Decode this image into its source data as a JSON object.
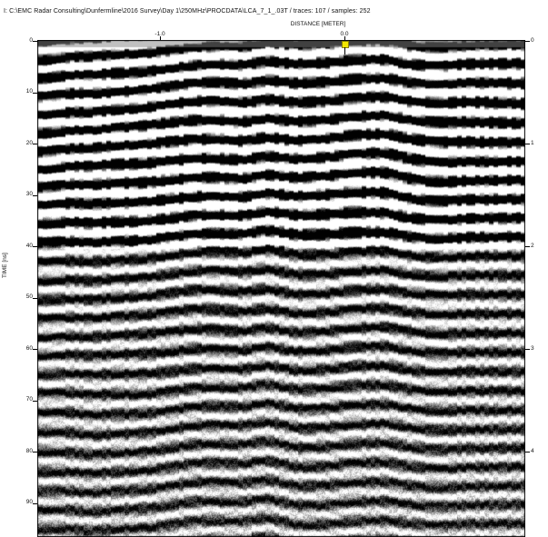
{
  "window": {
    "title": "I: C:\\EMC Radar Consulting\\Dunfermline\\2016 Survey\\Day 1\\250MHz\\PROCDATA\\LCA_7_1_.03T / traces: 107 / samples: 252"
  },
  "radargram": {
    "x_axis_label": "DISTANCE [METER]",
    "x_ticks": [
      "-1.0",
      "0.0"
    ],
    "y_axis_label": "TIME [ns]",
    "y_ticks_left": [
      "0",
      "10",
      "20",
      "30",
      "40",
      "50",
      "60",
      "70",
      "80",
      "90"
    ],
    "y_ticks_right": [
      "0",
      "1",
      "2",
      "3",
      "4"
    ],
    "right_axis_label": "",
    "marker_color": "#f2e600"
  }
}
